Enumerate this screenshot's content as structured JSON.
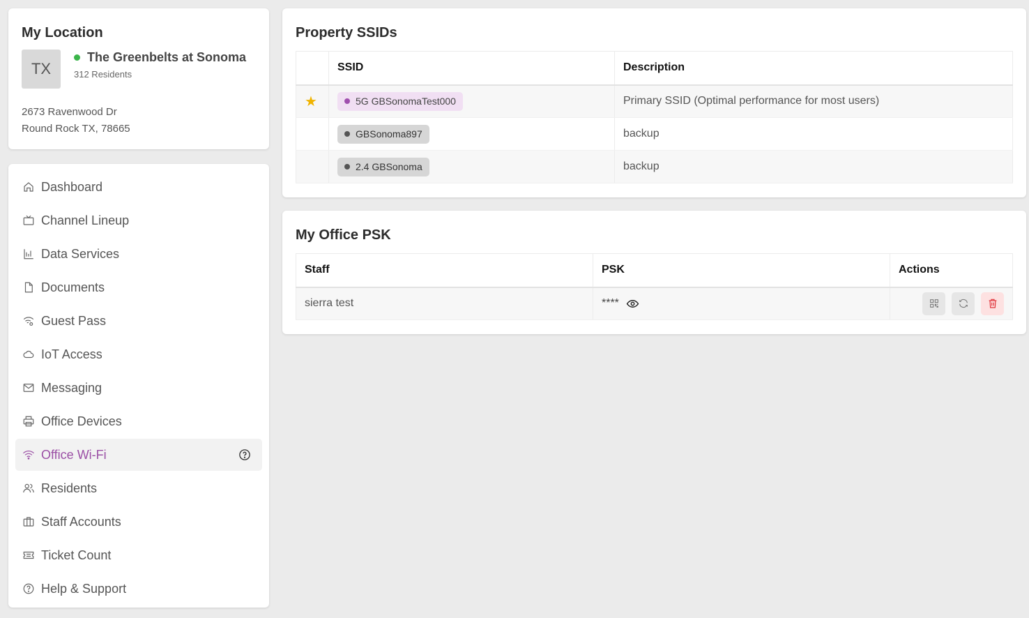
{
  "location": {
    "title": "My Location",
    "state_abbr": "TX",
    "name": "The Greenbelts at Sonoma",
    "residents": "312 Residents",
    "address_line1": "2673 Ravenwood Dr",
    "address_line2": "Round Rock TX, 78665",
    "status_color": "#3bb54a"
  },
  "nav": {
    "items": [
      {
        "label": "Dashboard",
        "icon": "home-icon"
      },
      {
        "label": "Channel Lineup",
        "icon": "tv-icon"
      },
      {
        "label": "Data Services",
        "icon": "bar-chart-icon"
      },
      {
        "label": "Documents",
        "icon": "document-icon"
      },
      {
        "label": "Guest Pass",
        "icon": "wifi-gear-icon"
      },
      {
        "label": "IoT Access",
        "icon": "cloud-icon"
      },
      {
        "label": "Messaging",
        "icon": "mail-icon"
      },
      {
        "label": "Office Devices",
        "icon": "printer-icon"
      },
      {
        "label": "Office Wi-Fi",
        "icon": "wifi-icon",
        "active": true
      },
      {
        "label": "Residents",
        "icon": "users-icon"
      },
      {
        "label": "Staff Accounts",
        "icon": "briefcase-icon"
      },
      {
        "label": "Ticket Count",
        "icon": "ticket-icon"
      },
      {
        "label": "Help & Support",
        "icon": "question-icon"
      }
    ],
    "active_color": "#9b4fa5"
  },
  "ssids": {
    "title": "Property SSIDs",
    "columns": [
      "",
      "SSID",
      "Description"
    ],
    "rows": [
      {
        "primary": true,
        "ssid": "5G GBSonomaTest000",
        "description": "Primary SSID (Optimal performance for most users)"
      },
      {
        "primary": false,
        "ssid": "GBSonoma897",
        "description": "backup"
      },
      {
        "primary": false,
        "ssid": "2.4 GBSonoma",
        "description": "backup"
      }
    ]
  },
  "psk": {
    "title": "My Office PSK",
    "columns": [
      "Staff",
      "PSK",
      "Actions"
    ],
    "rows": [
      {
        "staff": "sierra test",
        "psk": "****"
      }
    ]
  }
}
